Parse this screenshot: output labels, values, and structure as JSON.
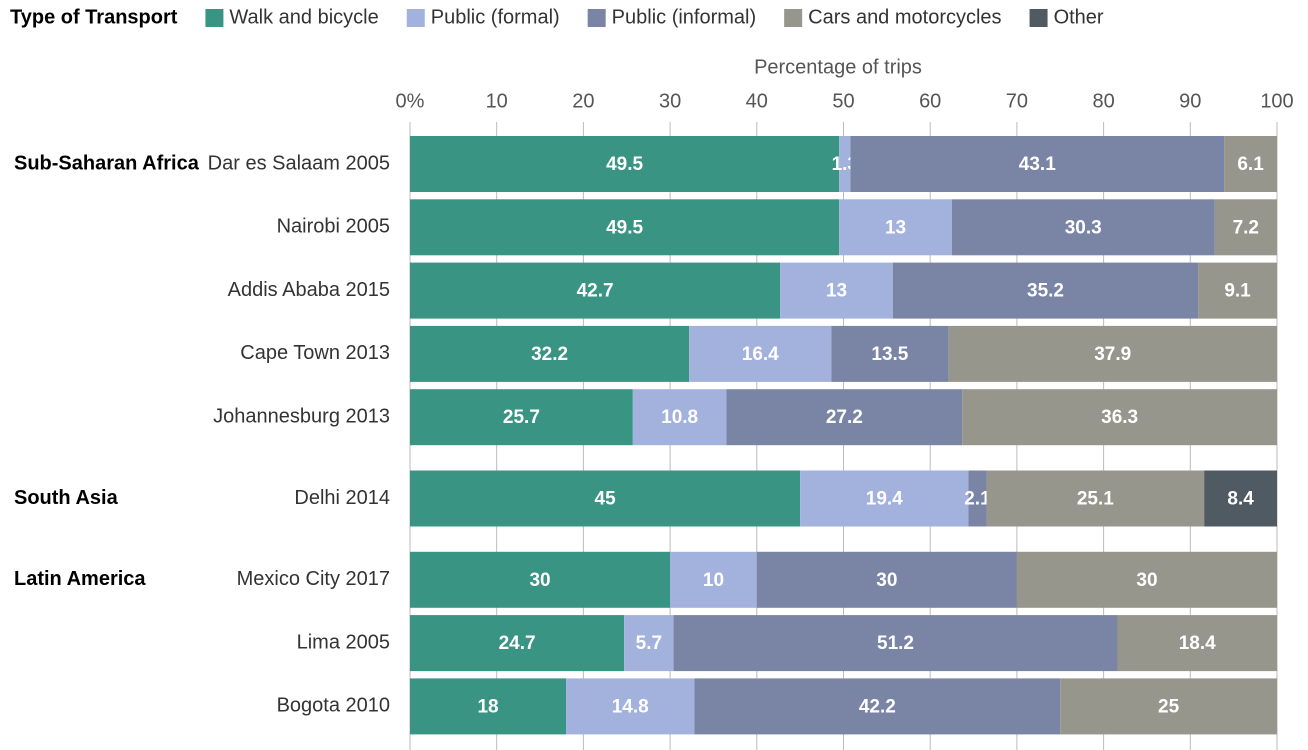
{
  "chart_data": {
    "type": "stacked-bar-horizontal",
    "legend_title": "Type of Transport",
    "xlabel": "Percentage of trips",
    "categories": [
      "Dar es Salaam 2005",
      "Nairobi 2005",
      "Addis Ababa 2015",
      "Cape Town 2013",
      "Johannesburg 2013",
      "Delhi 2014",
      "Mexico City 2017",
      "Lima 2005",
      "Bogota 2010"
    ],
    "group_labels": [
      "Sub-Saharan Africa",
      null,
      null,
      null,
      null,
      "South Asia",
      "Latin America",
      null,
      null
    ],
    "series": [
      {
        "name": "Walk and bicycle",
        "color": "#3a9483",
        "values": [
          49.5,
          49.5,
          42.7,
          32.2,
          25.7,
          45,
          30,
          24.7,
          18
        ]
      },
      {
        "name": "Public (formal)",
        "color": "#a3b1dd",
        "values": [
          1.3,
          13,
          13,
          16.4,
          10.8,
          19.4,
          10,
          5.7,
          14.8
        ]
      },
      {
        "name": "Public (informal)",
        "color": "#7a85a6",
        "values": [
          43.1,
          30.3,
          35.2,
          13.5,
          27.2,
          2.1,
          30,
          51.2,
          42.2
        ]
      },
      {
        "name": "Cars and motorcycles",
        "color": "#96968c",
        "values": [
          6.1,
          7.2,
          9.1,
          37.9,
          36.3,
          25.1,
          30,
          18.4,
          25
        ]
      },
      {
        "name": "Other",
        "color": "#4f5a62",
        "values": [
          null,
          null,
          null,
          null,
          null,
          8.4,
          null,
          null,
          null
        ]
      }
    ],
    "xlim": [
      0,
      100
    ],
    "xticks": [
      {
        "value": 0,
        "label": "0%"
      },
      10,
      20,
      30,
      40,
      50,
      60,
      70,
      80,
      90,
      100
    ],
    "grid": true
  }
}
